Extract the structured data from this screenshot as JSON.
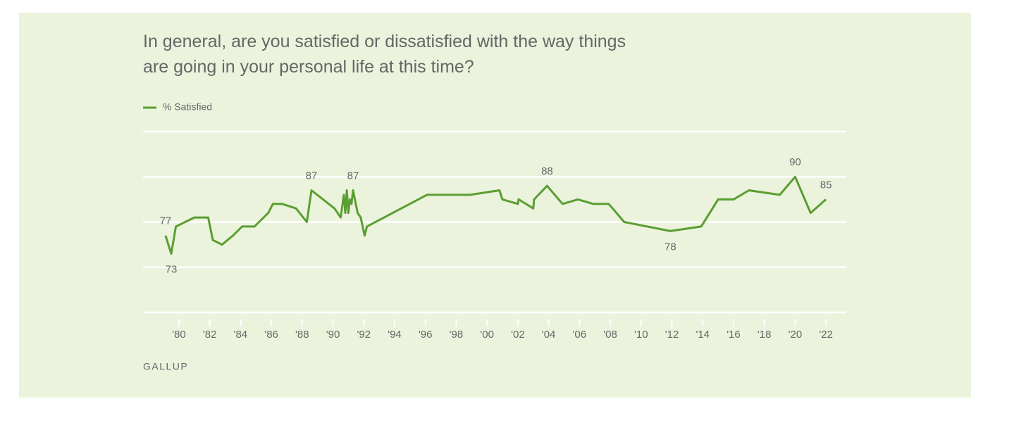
{
  "chart_data": {
    "type": "line",
    "title": "In general, are you satisfied or dissatisfied with the way things are going in your personal life at this time?",
    "source": "GALLUP",
    "x": [
      1979.13,
      1979.5,
      1979.8,
      1981,
      1981.9,
      1982.2,
      1982.8,
      1983.5,
      1984.1,
      1984.9,
      1985.8,
      1986.1,
      1986.7,
      1987.6,
      1988.3,
      1988.6,
      1990.1,
      1990.5,
      1990.7,
      1990.8,
      1990.9,
      1991.0,
      1991.1,
      1991.2,
      1991.3,
      1991.6,
      1991.8,
      1992.05,
      1992.2,
      1996.1,
      1998.9,
      2000.8,
      2001.0,
      2002.0,
      2002.05,
      2003.0,
      2003.05,
      2003.9,
      2004.9,
      2005.9,
      2006.9,
      2007.9,
      2008.9,
      2011.9,
      2013.9,
      2015.0,
      2016.0,
      2017.0,
      2019.0,
      2020.0,
      2021.0,
      2022.0
    ],
    "series": [
      {
        "name": "% Satisfied",
        "color": "#5a9e32",
        "values": [
          77,
          73,
          79,
          81,
          81,
          76,
          75,
          77,
          79,
          79,
          82,
          84,
          84,
          83,
          80,
          87,
          83,
          81,
          86,
          82,
          87,
          82,
          85,
          84,
          87,
          82,
          81,
          77,
          79,
          86,
          86,
          87,
          85,
          84,
          85,
          83,
          85,
          88,
          84,
          85,
          84,
          84,
          80,
          78,
          79,
          85,
          85,
          87,
          86,
          90,
          82,
          85
        ],
        "value_labels": [
          "77",
          "73",
          null,
          null,
          null,
          null,
          null,
          null,
          null,
          null,
          null,
          null,
          null,
          null,
          null,
          "87",
          null,
          null,
          null,
          null,
          null,
          null,
          null,
          null,
          "87",
          null,
          null,
          null,
          null,
          null,
          null,
          null,
          null,
          null,
          null,
          null,
          null,
          "88",
          null,
          null,
          null,
          null,
          null,
          "78",
          null,
          null,
          null,
          null,
          null,
          "90",
          null,
          "85"
        ]
      }
    ],
    "xlim": [
      1977.67,
      2023.32
    ],
    "xticks": [
      {
        "value": 1980,
        "label": "'80"
      },
      {
        "value": 1982,
        "label": "'82"
      },
      {
        "value": 1984,
        "label": "'84"
      },
      {
        "value": 1986,
        "label": "'86"
      },
      {
        "value": 1988,
        "label": "'88"
      },
      {
        "value": 1990,
        "label": "'90"
      },
      {
        "value": 1992,
        "label": "'92"
      },
      {
        "value": 1994,
        "label": "'94"
      },
      {
        "value": 1996,
        "label": "'96"
      },
      {
        "value": 1998,
        "label": "'98"
      },
      {
        "value": 2000,
        "label": "'00"
      },
      {
        "value": 2002,
        "label": "'02"
      },
      {
        "value": 2004,
        "label": "'04"
      },
      {
        "value": 2006,
        "label": "'06"
      },
      {
        "value": 2008,
        "label": "'08"
      },
      {
        "value": 2010,
        "label": "'10"
      },
      {
        "value": 2012,
        "label": "'12"
      },
      {
        "value": 2014,
        "label": "'14"
      },
      {
        "value": 2016,
        "label": "'16"
      },
      {
        "value": 2018,
        "label": "'18"
      },
      {
        "value": 2020,
        "label": "'20"
      },
      {
        "value": 2022,
        "label": "'22"
      }
    ],
    "ylim": [
      60,
      100
    ],
    "yticks": [
      60,
      70,
      80,
      90,
      100
    ],
    "grid": true
  }
}
